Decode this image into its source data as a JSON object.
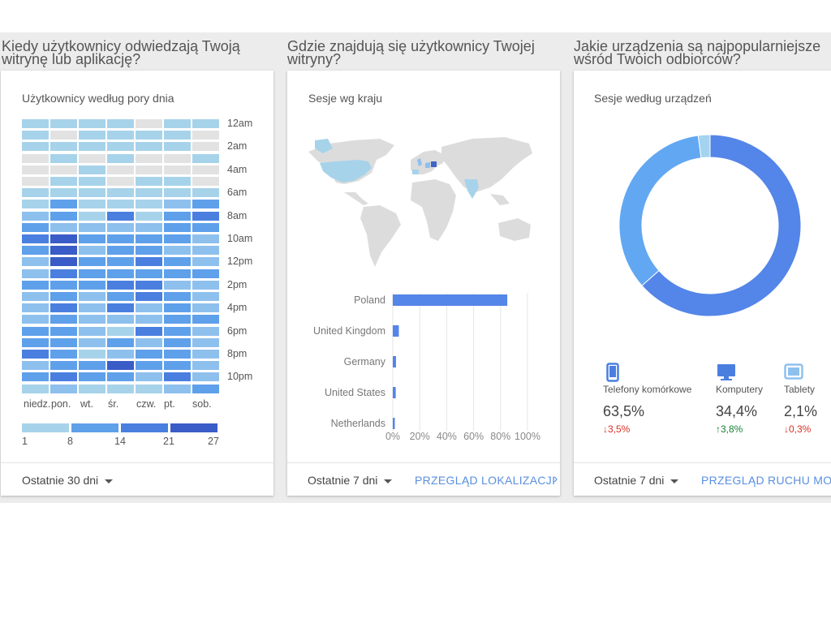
{
  "sections": {
    "time": {
      "heading": "Kiedy użytkownicy odwiedzają Twoją\nwitrynę lub aplikację?",
      "title": "Użytkownicy według pory dnia",
      "footer": "Ostatnie 30 dni"
    },
    "country": {
      "heading": "Gdzie znajdują się użytkownicy Twojej\nwitryny?",
      "title": "Sesje wg kraju",
      "footer": "Ostatnie 7 dni",
      "link": "PRZEGLĄD LOKALIZACJI"
    },
    "devices": {
      "heading": "Jakie urządzenia są najpopularniejsze\nwśród Twoich odbiorców?",
      "title": "Sesje według urządzeń",
      "footer": "Ostatnie 7 dni",
      "link": "PRZEGLĄD RUCHU MOBIL"
    }
  },
  "colors": {
    "scale": [
      "#e2e2e2",
      "#a7d3ea",
      "#8ec0ee",
      "#5fa0ea",
      "#4a7fe0",
      "#3a5cc7"
    ],
    "bar": "#5485e8",
    "highlight": "#3f64c8"
  },
  "chart_data": [
    {
      "type": "heatmap",
      "title": "Użytkownicy według pory dnia",
      "columns": [
        "niedz.",
        "pon.",
        "wt.",
        "śr.",
        "czw.",
        "pt.",
        "sob."
      ],
      "row_labels": [
        "12am",
        "",
        "2am",
        "",
        "4am",
        "",
        "6am",
        "",
        "8am",
        "",
        "10am",
        "",
        "12pm",
        "",
        "2pm",
        "",
        "4pm",
        "",
        "6pm",
        "",
        "8pm",
        "",
        "10pm",
        ""
      ],
      "legend": [
        "1",
        "8",
        "14",
        "21",
        "27"
      ],
      "levels": [
        [
          1,
          1,
          1,
          1,
          0,
          1,
          1
        ],
        [
          1,
          0,
          1,
          1,
          1,
          1,
          0
        ],
        [
          1,
          1,
          1,
          1,
          1,
          1,
          0
        ],
        [
          0,
          1,
          0,
          1,
          0,
          0,
          1
        ],
        [
          0,
          0,
          1,
          0,
          0,
          0,
          0
        ],
        [
          0,
          1,
          1,
          0,
          1,
          1,
          0
        ],
        [
          1,
          1,
          1,
          1,
          1,
          1,
          1
        ],
        [
          1,
          3,
          1,
          1,
          1,
          2,
          3
        ],
        [
          2,
          3,
          1,
          4,
          1,
          3,
          4
        ],
        [
          3,
          2,
          2,
          2,
          2,
          3,
          3
        ],
        [
          4,
          5,
          3,
          3,
          3,
          3,
          2
        ],
        [
          3,
          5,
          2,
          3,
          3,
          2,
          2
        ],
        [
          2,
          5,
          3,
          3,
          4,
          3,
          2
        ],
        [
          2,
          4,
          3,
          3,
          3,
          3,
          3
        ],
        [
          3,
          3,
          3,
          4,
          4,
          2,
          2
        ],
        [
          2,
          3,
          2,
          3,
          4,
          3,
          2
        ],
        [
          2,
          4,
          2,
          4,
          2,
          3,
          2
        ],
        [
          2,
          3,
          2,
          2,
          2,
          3,
          3
        ],
        [
          3,
          3,
          2,
          1,
          4,
          3,
          2
        ],
        [
          3,
          3,
          2,
          3,
          2,
          3,
          2
        ],
        [
          4,
          3,
          1,
          2,
          3,
          3,
          2
        ],
        [
          2,
          3,
          3,
          5,
          3,
          3,
          2
        ],
        [
          3,
          4,
          3,
          3,
          2,
          4,
          2
        ],
        [
          1,
          2,
          1,
          1,
          1,
          2,
          3
        ]
      ]
    },
    {
      "type": "bar",
      "title": "Sesje wg kraju",
      "categories": [
        "Poland",
        "United Kingdom",
        "Germany",
        "United States",
        "Netherlands"
      ],
      "values": [
        85,
        4.5,
        2.4,
        2.2,
        1.5
      ],
      "x_ticks": [
        "0%",
        "20%",
        "40%",
        "60%",
        "80%",
        "100%"
      ],
      "xlim": [
        0,
        100
      ]
    },
    {
      "type": "pie",
      "title": "Sesje według urządzeń",
      "categories": [
        "Telefony komórkowe",
        "Komputery",
        "Tablety"
      ],
      "values": [
        63.5,
        34.4,
        2.1
      ],
      "display": [
        "63,5%",
        "34,4%",
        "2,1%"
      ],
      "change": [
        "3,5%",
        "3,8%",
        "0,3%"
      ],
      "change_dir": [
        "down",
        "up",
        "down"
      ],
      "colors": [
        "#5485e8",
        "#62a7f2",
        "#a4d3ef"
      ],
      "icons": [
        "smartphone-icon",
        "monitor-icon",
        "tablet-icon"
      ]
    }
  ]
}
